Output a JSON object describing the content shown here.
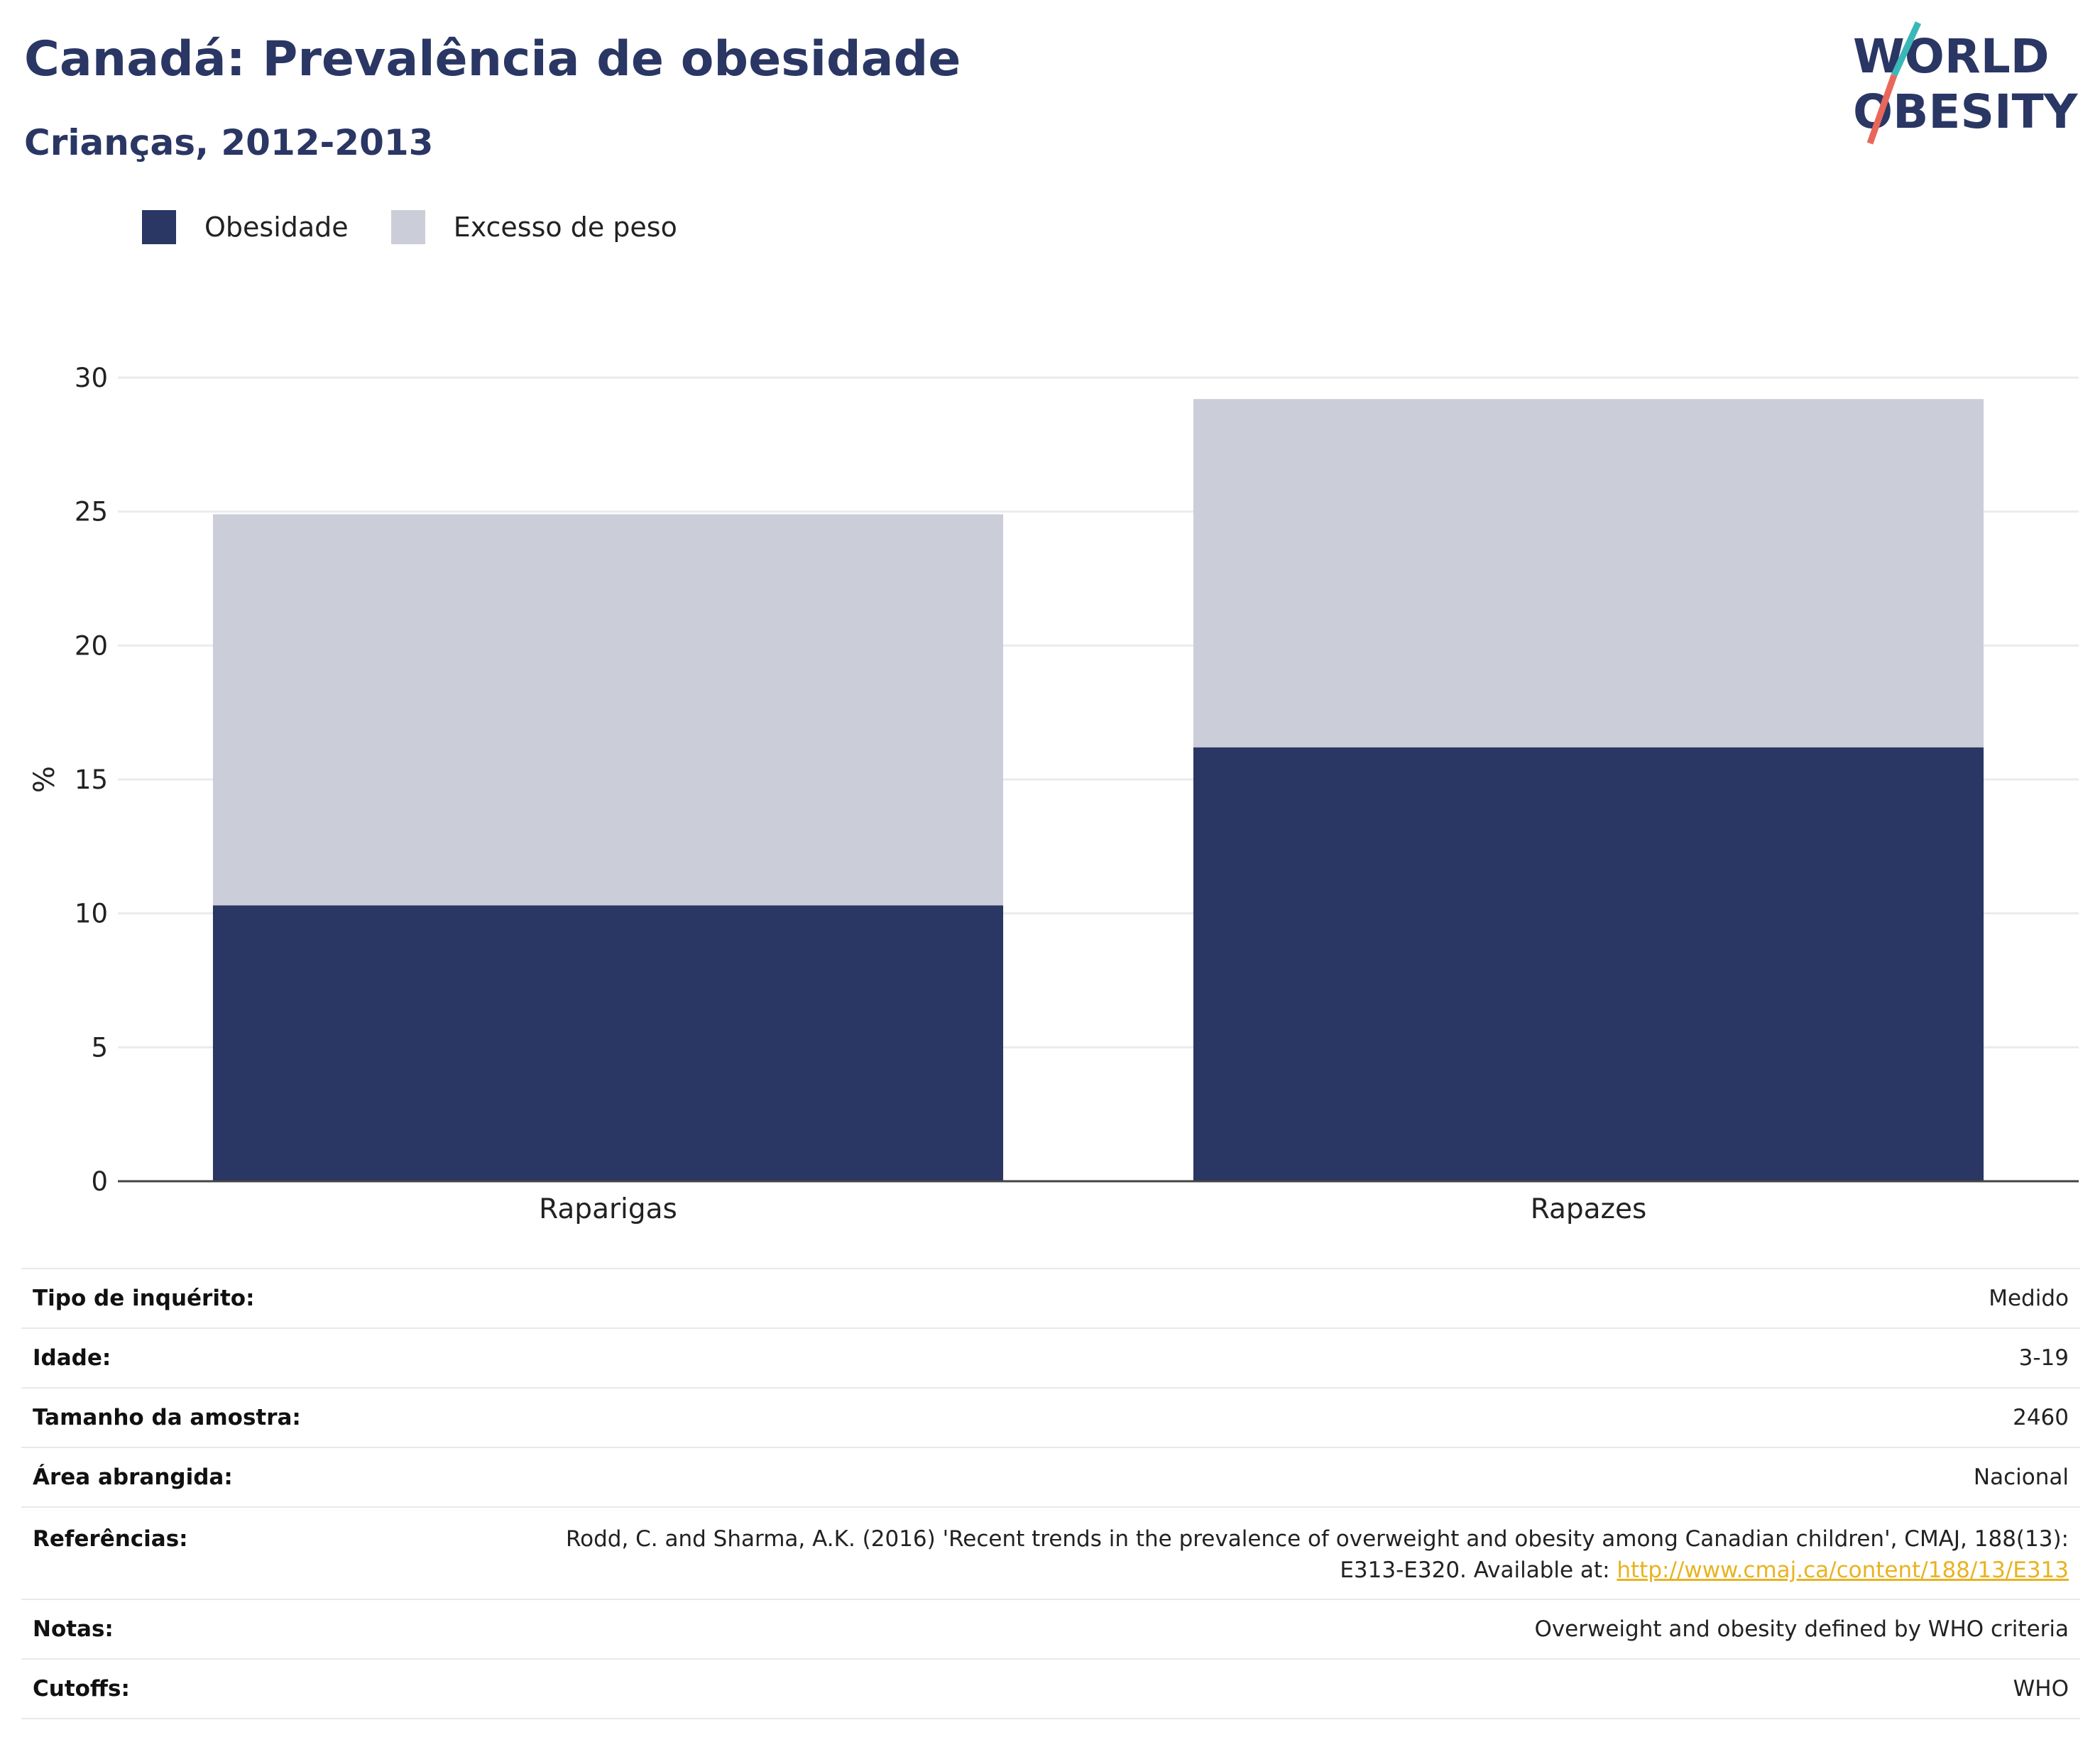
{
  "title": "Canadá: Prevalência de obesidade",
  "subtitle": "Crianças, 2012-2013",
  "logo": {
    "line1": "WORLD",
    "line2": "OBESITY"
  },
  "legend": [
    {
      "label": "Obesidade",
      "color": "#2a3663"
    },
    {
      "label": "Excesso de peso",
      "color": "#cbcdd9"
    }
  ],
  "chart_data": {
    "type": "bar",
    "stacked": true,
    "categories": [
      "Raparigas",
      "Rapazes"
    ],
    "series": [
      {
        "name": "Obesidade",
        "values": [
          10.3,
          16.2
        ],
        "color": "#2a3663"
      },
      {
        "name": "Excesso de peso",
        "values": [
          14.6,
          13.0
        ],
        "color": "#cbcdd9"
      }
    ],
    "ylabel": "%",
    "ylim": [
      0,
      30
    ],
    "yticks": [
      0,
      5,
      10,
      15,
      20,
      25,
      30
    ],
    "grid": true,
    "legend_position": "top-left"
  },
  "info": {
    "survey_type": {
      "label": "Tipo de inquérito:",
      "value": "Medido"
    },
    "age": {
      "label": "Idade:",
      "value": "3-19"
    },
    "sample_size": {
      "label": "Tamanho da amostra:",
      "value": "2460"
    },
    "area": {
      "label": "Área abrangida:",
      "value": "Nacional"
    },
    "references": {
      "label": "Referências:",
      "text_line1": "Rodd, C. and Sharma, A.K. (2016) 'Recent trends in the prevalence of overweight and obesity among Canadian children', CMAJ, 188(13):",
      "text_line2": "E313-E320. Available at: ",
      "link": "http://www.cmaj.ca/content/188/13/E313"
    },
    "notes": {
      "label": "Notas:",
      "value": "Overweight and obesity defined by WHO criteria"
    },
    "cutoffs": {
      "label": "Cutoffs:",
      "value": "WHO"
    }
  }
}
